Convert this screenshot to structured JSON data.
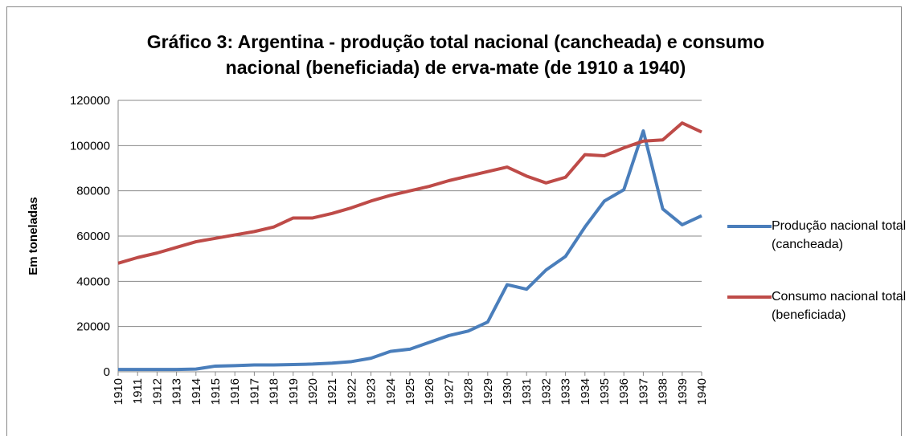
{
  "chart_data": {
    "type": "line",
    "title": "Gráfico 3: Argentina - produção total nacional (cancheada) e consumo nacional (beneficiada) de erva-mate (de 1910 a 1940)",
    "y_label": "Em toneladas",
    "categories": [
      "1910",
      "1911",
      "1912",
      "1913",
      "1914",
      "1915",
      "1916",
      "1917",
      "1918",
      "1919",
      "1920",
      "1921",
      "1922",
      "1923",
      "1924",
      "1925",
      "1926",
      "1927",
      "1928",
      "1929",
      "1930",
      "1931",
      "1932",
      "1933",
      "1934",
      "1935",
      "1936",
      "1937",
      "1938",
      "1939",
      "1940"
    ],
    "series": [
      {
        "name": "Produção nacional total (cancheada)",
        "color": "#4a7ebb",
        "values": [
          1000,
          1000,
          1000,
          1000,
          1200,
          2500,
          2700,
          3000,
          3000,
          3200,
          3400,
          3800,
          4500,
          6000,
          9000,
          10000,
          13000,
          16000,
          18000,
          22000,
          38500,
          36500,
          45000,
          51000,
          64000,
          75500,
          80500,
          106500,
          72000,
          65000,
          69000
        ]
      },
      {
        "name": "Consumo nacional total (beneficiada)",
        "color": "#be4b48",
        "values": [
          48000,
          50500,
          52500,
          55000,
          57500,
          59000,
          60500,
          62000,
          64000,
          68000,
          68000,
          70000,
          72500,
          75500,
          78000,
          80000,
          82000,
          84500,
          86500,
          88500,
          90500,
          86500,
          83500,
          86000,
          96000,
          95500,
          99000,
          102000,
          102500,
          110000,
          106000
        ]
      }
    ],
    "ylim": [
      0,
      120000
    ],
    "yticks": [
      0,
      20000,
      40000,
      60000,
      80000,
      100000,
      120000
    ],
    "grid": true,
    "legend": "right"
  }
}
